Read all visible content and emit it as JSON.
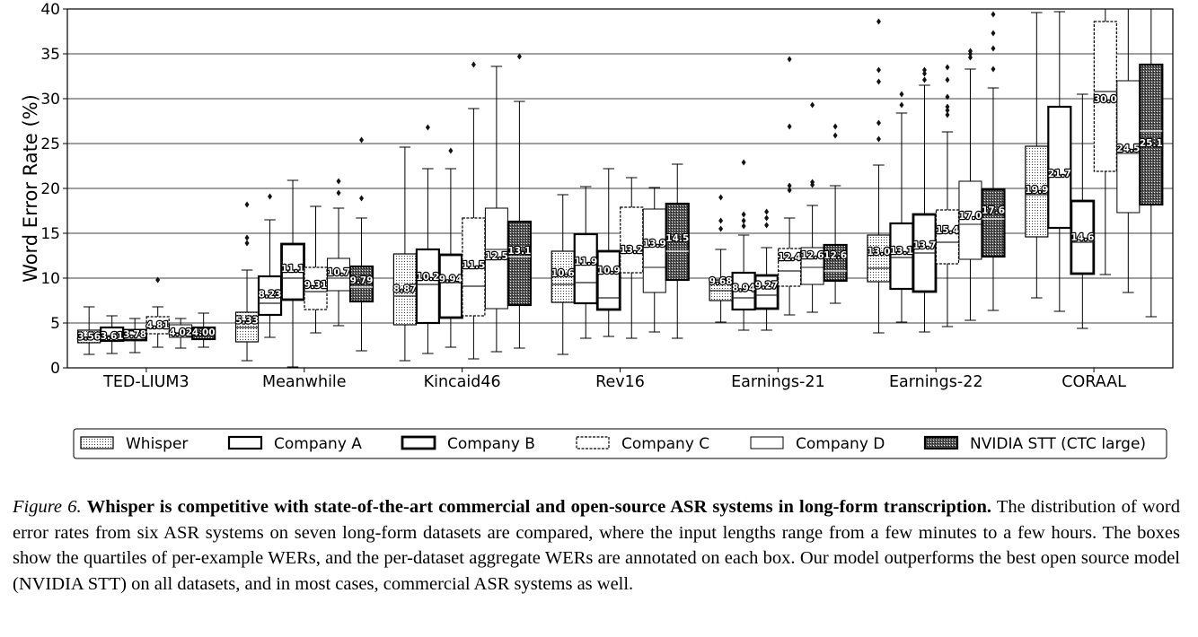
{
  "chart_data": {
    "type": "box",
    "ylabel": "Word Error Rate (%)",
    "ylim": [
      0,
      40
    ],
    "yticks": [
      0,
      5,
      10,
      15,
      20,
      25,
      30,
      35,
      40
    ],
    "grid": "horizontal",
    "legend_position": "bottom",
    "categories": [
      "TED-LIUM3",
      "Meanwhile",
      "Kincaid46",
      "Rev16",
      "Earnings-21",
      "Earnings-22",
      "CORAAL"
    ],
    "series": [
      {
        "name": "Whisper",
        "boxes": [
          {
            "whislo": 1.5,
            "q1": 2.8,
            "med": 3.4,
            "q3": 4.2,
            "whishi": 6.8,
            "fliers": [],
            "label": "3.56"
          },
          {
            "whislo": 0.8,
            "q1": 2.9,
            "med": 4.5,
            "q3": 6.2,
            "whishi": 10.9,
            "fliers": [
              13.9,
              14.5,
              18.2
            ],
            "label": "5.33"
          },
          {
            "whislo": 0.8,
            "q1": 4.8,
            "med": 8.0,
            "q3": 12.7,
            "whishi": 24.6,
            "fliers": [],
            "label": "8.87"
          },
          {
            "whislo": 1.5,
            "q1": 7.3,
            "med": 9.3,
            "q3": 13.0,
            "whishi": 19.3,
            "fliers": [],
            "label": "10.6"
          },
          {
            "whislo": 5.1,
            "q1": 7.5,
            "med": 8.6,
            "q3": 9.8,
            "whishi": 13.2,
            "fliers": [
              15.5,
              16.4,
              19.0
            ],
            "label": "9.68"
          },
          {
            "whislo": 3.9,
            "q1": 9.6,
            "med": 11.1,
            "q3": 14.8,
            "whishi": 22.6,
            "fliers": [
              25.5,
              27.3,
              31.9,
              33.2,
              38.6
            ],
            "label": "13.0"
          },
          {
            "whislo": 7.8,
            "q1": 14.6,
            "med": 19.3,
            "q3": 24.7,
            "whishi": 39.6,
            "fliers": [],
            "label": "19.9"
          }
        ]
      },
      {
        "name": "Company A",
        "boxes": [
          {
            "whislo": 1.6,
            "q1": 3.0,
            "med": 3.6,
            "q3": 4.5,
            "whishi": 5.8,
            "fliers": [],
            "label": "3.61"
          },
          {
            "whislo": 3.4,
            "q1": 5.9,
            "med": 7.2,
            "q3": 10.2,
            "whishi": 16.5,
            "fliers": [
              19.1
            ],
            "label": "8.23"
          },
          {
            "whislo": 1.6,
            "q1": 5.0,
            "med": 9.3,
            "q3": 13.2,
            "whishi": 22.2,
            "fliers": [
              26.8
            ],
            "label": "10.2"
          },
          {
            "whislo": 3.3,
            "q1": 7.2,
            "med": 9.5,
            "q3": 14.9,
            "whishi": 20.2,
            "fliers": [],
            "label": "11.9"
          },
          {
            "whislo": 4.2,
            "q1": 6.5,
            "med": 7.8,
            "q3": 10.6,
            "whishi": 14.8,
            "fliers": [
              15.8,
              16.4,
              17.1,
              22.9
            ],
            "label": "8.94"
          },
          {
            "whislo": 5.1,
            "q1": 8.8,
            "med": 12.3,
            "q3": 16.1,
            "whishi": 28.4,
            "fliers": [
              29.3,
              30.5
            ],
            "label": "13.1"
          },
          {
            "whislo": 6.3,
            "q1": 15.6,
            "med": 21.5,
            "q3": 29.1,
            "whishi": 39.7,
            "fliers": [],
            "label": "21.7"
          }
        ]
      },
      {
        "name": "Company B",
        "boxes": [
          {
            "whislo": 1.7,
            "q1": 3.1,
            "med": 3.6,
            "q3": 4.2,
            "whishi": 5.5,
            "fliers": [],
            "label": "3.78"
          },
          {
            "whislo": 0.1,
            "q1": 7.6,
            "med": 10.0,
            "q3": 13.8,
            "whishi": 20.9,
            "fliers": [],
            "label": "11.1"
          },
          {
            "whislo": 2.3,
            "q1": 5.6,
            "med": 9.5,
            "q3": 12.6,
            "whishi": 22.2,
            "fliers": [
              24.2
            ],
            "label": "9.94"
          },
          {
            "whislo": 3.5,
            "q1": 6.5,
            "med": 7.8,
            "q3": 13.0,
            "whishi": 22.2,
            "fliers": [],
            "label": "10.9"
          },
          {
            "whislo": 4.2,
            "q1": 6.6,
            "med": 8.1,
            "q3": 10.3,
            "whishi": 13.4,
            "fliers": [
              15.9,
              16.7,
              17.4
            ],
            "label": "9.27"
          },
          {
            "whislo": 4.0,
            "q1": 8.5,
            "med": 12.8,
            "q3": 17.1,
            "whishi": 31.5,
            "fliers": [
              32.1,
              32.8,
              33.2
            ],
            "label": "13.7"
          },
          {
            "whislo": 4.4,
            "q1": 10.5,
            "med": 14.0,
            "q3": 18.6,
            "whishi": 30.5,
            "fliers": [],
            "label": "14.6"
          }
        ]
      },
      {
        "name": "Company C",
        "boxes": [
          {
            "whislo": 2.3,
            "q1": 3.8,
            "med": 4.4,
            "q3": 5.7,
            "whishi": 6.8,
            "fliers": [
              9.8
            ],
            "label": "4.81"
          },
          {
            "whislo": 3.9,
            "q1": 6.5,
            "med": 8.5,
            "q3": 11.2,
            "whishi": 18.0,
            "fliers": [],
            "label": "9.31"
          },
          {
            "whislo": 1.0,
            "q1": 5.8,
            "med": 9.1,
            "q3": 16.7,
            "whishi": 28.9,
            "fliers": [
              33.8
            ],
            "label": "11.5"
          },
          {
            "whislo": 3.3,
            "q1": 10.6,
            "med": 13.0,
            "q3": 17.9,
            "whishi": 21.2,
            "fliers": [],
            "label": "13.2"
          },
          {
            "whislo": 5.9,
            "q1": 9.1,
            "med": 10.8,
            "q3": 13.3,
            "whishi": 16.7,
            "fliers": [
              19.8,
              20.3,
              26.9,
              34.4
            ],
            "label": "12.4"
          },
          {
            "whislo": 4.6,
            "q1": 11.6,
            "med": 14.0,
            "q3": 17.6,
            "whishi": 26.3,
            "fliers": [
              28.2,
              28.7,
              29.1,
              30.2,
              32.1,
              33.5
            ],
            "label": "15.4"
          },
          {
            "whislo": 10.4,
            "q1": 21.9,
            "med": 30.8,
            "q3": 38.6,
            "whishi": 40.0,
            "fliers": [],
            "label": "30.0"
          }
        ]
      },
      {
        "name": "Company D",
        "boxes": [
          {
            "whislo": 2.2,
            "q1": 3.4,
            "med": 3.9,
            "q3": 4.8,
            "whishi": 5.5,
            "fliers": [],
            "label": "4.02"
          },
          {
            "whislo": 4.7,
            "q1": 8.6,
            "med": 10.0,
            "q3": 12.2,
            "whishi": 17.8,
            "fliers": [
              19.5,
              20.8
            ],
            "label": "10.7"
          },
          {
            "whislo": 1.8,
            "q1": 6.6,
            "med": 13.2,
            "q3": 17.8,
            "whishi": 33.6,
            "fliers": [],
            "label": "12.5"
          },
          {
            "whislo": 4.0,
            "q1": 8.4,
            "med": 11.2,
            "q3": 17.7,
            "whishi": 20.1,
            "fliers": [],
            "label": "13.9"
          },
          {
            "whislo": 6.2,
            "q1": 9.3,
            "med": 11.2,
            "q3": 13.4,
            "whishi": 18.1,
            "fliers": [
              20.4,
              20.7,
              29.3
            ],
            "label": "12.6"
          },
          {
            "whislo": 5.3,
            "q1": 12.1,
            "med": 16.0,
            "q3": 20.8,
            "whishi": 33.3,
            "fliers": [
              34.6,
              35.0,
              35.3
            ],
            "label": "17.0"
          },
          {
            "whislo": 8.4,
            "q1": 17.3,
            "med": 23.9,
            "q3": 32.0,
            "whishi": 40.0,
            "fliers": [],
            "label": "24.5"
          }
        ]
      },
      {
        "name": "NVIDIA STT (CTC large)",
        "boxes": [
          {
            "whislo": 2.3,
            "q1": 3.2,
            "med": 3.8,
            "q3": 4.5,
            "whishi": 6.1,
            "fliers": [],
            "label": "4.00"
          },
          {
            "whislo": 1.9,
            "q1": 7.4,
            "med": 9.0,
            "q3": 11.3,
            "whishi": 16.7,
            "fliers": [
              18.9,
              25.4
            ],
            "label": "9.79"
          },
          {
            "whislo": 2.2,
            "q1": 7.0,
            "med": 12.4,
            "q3": 16.3,
            "whishi": 29.7,
            "fliers": [
              34.7
            ],
            "label": "13.1"
          },
          {
            "whislo": 3.3,
            "q1": 9.8,
            "med": 13.0,
            "q3": 18.3,
            "whishi": 22.7,
            "fliers": [],
            "label": "14.5"
          },
          {
            "whislo": 7.2,
            "q1": 9.7,
            "med": 10.8,
            "q3": 13.7,
            "whishi": 20.3,
            "fliers": [
              25.9,
              26.9
            ],
            "label": "12.6"
          },
          {
            "whislo": 6.4,
            "q1": 12.4,
            "med": 16.6,
            "q3": 19.9,
            "whishi": 31.2,
            "fliers": [
              33.3,
              35.6,
              37.3,
              39.4
            ],
            "label": "17.6"
          },
          {
            "whislo": 5.7,
            "q1": 18.2,
            "med": 26.4,
            "q3": 33.8,
            "whishi": 40.0,
            "fliers": [],
            "label": "25.1"
          }
        ]
      }
    ]
  },
  "caption": {
    "label": "Figure 6.",
    "lead": "Whisper is competitive with state-of-the-art commercial and open-source ASR systems in long-form transcription.",
    "body": "The distribution of word error rates from six ASR systems on seven long-form datasets are compared, where the input lengths range from a few minutes to a few hours. The boxes show the quartiles of per-example WERs, and the per-dataset aggregate WERs are annotated on each box. Our model outperforms the best open source model (NVIDIA STT) on all datasets, and in most cases, commercial ASR systems as well."
  }
}
